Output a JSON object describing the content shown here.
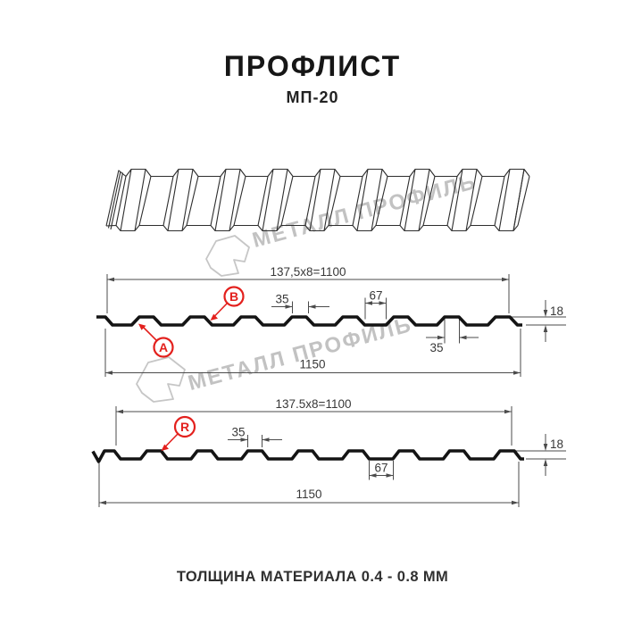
{
  "header": {
    "title": "ПРОФЛИСТ",
    "subtitle": "МП-20"
  },
  "footer": {
    "thickness_note": "ТОЛЩИНА МАТЕРИАЛА 0.4 - 0.8 ММ"
  },
  "watermark": {
    "brand_text": "МЕТАЛЛ ПРОФИЛЬ",
    "color": "#c2c2c2"
  },
  "colors": {
    "accent_red": "#e3201d",
    "profile_line": "#141414",
    "dim_line": "#4b4b4b"
  },
  "diagram_top": {
    "dim_pitch": "137,5x8=1100",
    "dim_overall_width": "1150",
    "dim_rib_top_width": "35",
    "dim_valley_width": "67",
    "dim_profile_height": "18",
    "dim_rib_bottom_width": "35",
    "side_label_a": "A",
    "side_label_b": "B"
  },
  "diagram_bottom": {
    "dim_pitch": "137.5x8=1100",
    "dim_overall_width": "1150",
    "dim_rib_top_width": "35",
    "dim_valley_width": "67",
    "dim_profile_height": "18",
    "side_label_r": "R"
  }
}
